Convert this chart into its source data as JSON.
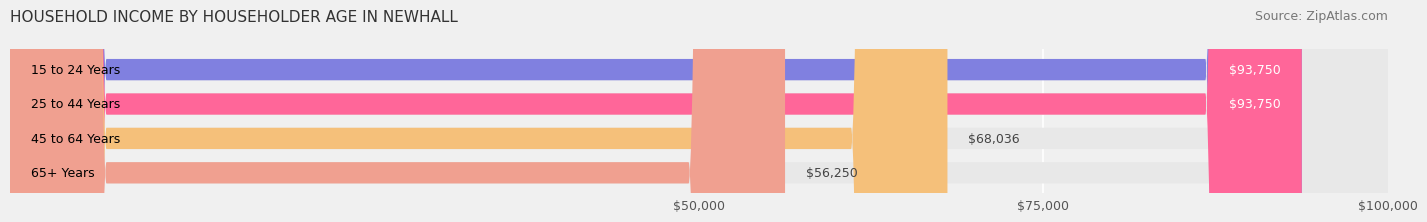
{
  "title": "HOUSEHOLD INCOME BY HOUSEHOLDER AGE IN NEWHALL",
  "source": "Source: ZipAtlas.com",
  "categories": [
    "15 to 24 Years",
    "25 to 44 Years",
    "45 to 64 Years",
    "65+ Years"
  ],
  "values": [
    93750,
    93750,
    68036,
    56250
  ],
  "bar_colors": [
    "#8080e0",
    "#ff6699",
    "#f5c07a",
    "#f0a090"
  ],
  "value_labels": [
    "$93,750",
    "$93,750",
    "$68,036",
    "$56,250"
  ],
  "xlim": [
    0,
    100000
  ],
  "xaxis_min": 50000,
  "xaxis_max": 100000,
  "xticks": [
    50000,
    75000,
    100000
  ],
  "xticklabels": [
    "$50,000",
    "$75,000",
    "$100,000"
  ],
  "background_color": "#f0f0f0",
  "bar_background_color": "#e8e8e8",
  "title_fontsize": 11,
  "source_fontsize": 9,
  "label_fontsize": 9,
  "tick_fontsize": 9
}
